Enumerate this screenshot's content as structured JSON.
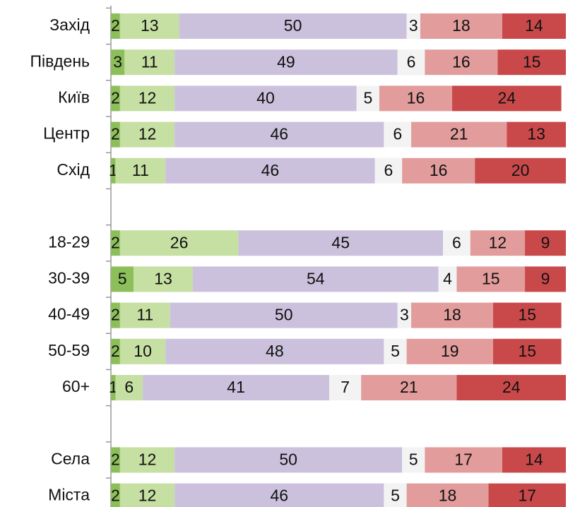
{
  "chart_data": {
    "type": "stacked-bar-horizontal",
    "categories": [
      "Захід",
      "Південь",
      "Київ",
      "Центр",
      "Схід",
      null,
      "18-29",
      "30-39",
      "40-49",
      "50-59",
      "60+",
      null,
      "Села",
      "Міста"
    ],
    "xlim": [
      0,
      100
    ],
    "series": [
      {
        "color": "#8cbf5a",
        "values": [
          2,
          3,
          2,
          2,
          1,
          null,
          2,
          5,
          2,
          2,
          1,
          null,
          2,
          2
        ]
      },
      {
        "color": "#c6dfa2",
        "values": [
          13,
          11,
          12,
          12,
          11,
          null,
          26,
          13,
          11,
          10,
          6,
          null,
          12,
          12
        ]
      },
      {
        "color": "#cbc1dd",
        "values": [
          50,
          49,
          40,
          46,
          46,
          null,
          45,
          54,
          50,
          48,
          41,
          null,
          50,
          46
        ]
      },
      {
        "color": "#f3f3f3",
        "values": [
          3,
          6,
          5,
          6,
          6,
          null,
          6,
          4,
          3,
          5,
          7,
          null,
          5,
          5
        ]
      },
      {
        "color": "#e29c9c",
        "values": [
          18,
          16,
          16,
          21,
          16,
          null,
          12,
          15,
          18,
          19,
          21,
          null,
          17,
          18
        ]
      },
      {
        "color": "#c9494b",
        "values": [
          14,
          15,
          24,
          13,
          20,
          null,
          9,
          9,
          15,
          15,
          24,
          null,
          14,
          17
        ]
      }
    ]
  }
}
